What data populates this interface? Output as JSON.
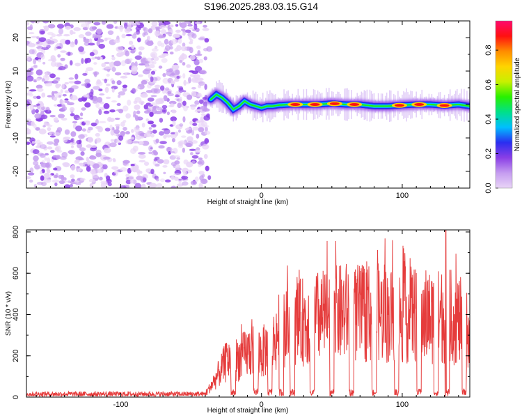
{
  "title": "S196.2025.283.03.15.G14",
  "chart_data": [
    {
      "type": "heatmap",
      "name": "spectrogram",
      "xlabel": "Height of straight line (km)",
      "ylabel": "Frequency (Hz)",
      "xlim": [
        -167,
        148
      ],
      "ylim": [
        -25,
        25
      ],
      "x_tick_labels": [
        -100,
        0,
        100
      ],
      "y_tick_labels": [
        -20,
        -10,
        0,
        10,
        20
      ],
      "noise_region_x": [
        -167,
        -36
      ],
      "signal_track": {
        "x": [
          -36,
          -32,
          -28,
          -24,
          -20,
          -16,
          -12,
          -8,
          -4,
          0,
          4,
          8,
          12,
          20,
          30,
          40,
          50,
          60,
          70,
          80,
          90,
          100,
          110,
          120,
          130,
          140,
          148
        ],
        "freq": [
          1.5,
          3,
          2,
          0.5,
          -1.5,
          -0.5,
          1,
          0,
          -0.5,
          -1,
          -0.5,
          -0.5,
          -0.2,
          0,
          0,
          0,
          0.3,
          0,
          0,
          -0.5,
          -0.5,
          -0.2,
          0,
          0,
          -0.3,
          0,
          -0.5
        ]
      },
      "hot_spots_x": [
        24,
        38,
        52,
        66,
        98,
        112,
        130
      ],
      "colorbar": {
        "label": "Normalized spectral amplitude",
        "ticks": [
          0.0,
          0.2,
          0.4,
          0.6,
          0.8
        ],
        "range": [
          0,
          0.97
        ],
        "colors": [
          "#e9d5f7",
          "#c59cf0",
          "#8a3ee6",
          "#2a2ef0",
          "#00bfff",
          "#00e08a",
          "#28f000",
          "#c8f000",
          "#ffd400",
          "#ff8c00",
          "#ff1010",
          "#ff0a6e"
        ]
      }
    },
    {
      "type": "line",
      "name": "snr",
      "xlabel": "Height of straight line (km)",
      "ylabel": "SNR (10 * v/v)",
      "xlim": [
        -167,
        148
      ],
      "ylim": [
        0,
        810
      ],
      "x_tick_labels": [
        -100,
        0,
        100
      ],
      "y_tick_labels": [
        0,
        200,
        400,
        600,
        800
      ],
      "color": "#e53c3c",
      "series": [
        {
          "name": "SNR",
          "x": [
            -167,
            -120,
            -80,
            -40,
            -36,
            -24,
            -20,
            -12,
            -8,
            -4,
            0,
            4,
            8,
            12,
            20,
            30,
            40,
            50,
            60,
            70,
            80,
            90,
            100,
            110,
            120,
            130,
            140,
            148
          ],
          "y": [
            15,
            15,
            15,
            15,
            60,
            210,
            200,
            230,
            260,
            280,
            240,
            270,
            290,
            360,
            380,
            420,
            440,
            450,
            470,
            460,
            470,
            450,
            450,
            460,
            440,
            450,
            430,
            350
          ]
        }
      ],
      "dropouts_x": [
        -20,
        -4,
        6,
        14,
        22,
        36,
        50,
        64,
        80,
        96,
        112,
        124,
        132,
        144
      ],
      "peak": {
        "x": 131,
        "y": 810
      }
    }
  ]
}
